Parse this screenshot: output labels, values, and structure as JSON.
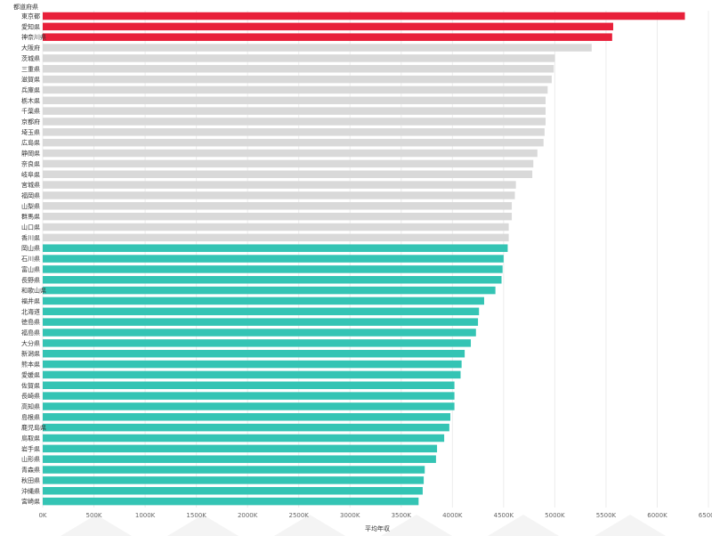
{
  "chart_data": {
    "type": "bar",
    "orientation": "horizontal",
    "title": "",
    "row_header": "都道府県",
    "xlabel": "平均年収",
    "xlim": [
      0,
      6500000
    ],
    "x_ticks": [
      0,
      500000,
      1000000,
      1500000,
      2000000,
      2500000,
      3000000,
      3500000,
      4000000,
      4500000,
      5000000,
      5500000,
      6000000,
      6500000
    ],
    "x_tick_labels": [
      "0K",
      "500K",
      "1000K",
      "1500K",
      "2000K",
      "2500K",
      "3000K",
      "3500K",
      "4000K",
      "4500K",
      "5000K",
      "5500K",
      "6000K",
      "6500K"
    ],
    "grid": "vertical",
    "colors": {
      "top": "#e8203a",
      "middle": "#d9d9d9",
      "bottom": "#34c4b4"
    },
    "categories": [
      "東京都",
      "愛知県",
      "神奈川県",
      "大阪府",
      "茨城県",
      "三重県",
      "滋賀県",
      "兵庫県",
      "栃木県",
      "千葉県",
      "京都府",
      "埼玉県",
      "広島県",
      "静岡県",
      "奈良県",
      "岐阜県",
      "宮城県",
      "福岡県",
      "山梨県",
      "群馬県",
      "山口県",
      "香川県",
      "岡山県",
      "石川県",
      "富山県",
      "長野県",
      "和歌山県",
      "福井県",
      "北海道",
      "徳島県",
      "福島県",
      "大分県",
      "新潟県",
      "熊本県",
      "愛媛県",
      "佐賀県",
      "長崎県",
      "高知県",
      "島根県",
      "鹿児島県",
      "鳥取県",
      "岩手県",
      "山形県",
      "青森県",
      "秋田県",
      "沖縄県",
      "宮崎県"
    ],
    "values": [
      6270000,
      5570000,
      5560000,
      5360000,
      5000000,
      4990000,
      4970000,
      4930000,
      4910000,
      4910000,
      4910000,
      4900000,
      4890000,
      4830000,
      4790000,
      4780000,
      4620000,
      4610000,
      4580000,
      4580000,
      4550000,
      4550000,
      4540000,
      4500000,
      4490000,
      4480000,
      4420000,
      4310000,
      4260000,
      4250000,
      4230000,
      4180000,
      4120000,
      4090000,
      4080000,
      4020000,
      4020000,
      4020000,
      3980000,
      3970000,
      3920000,
      3850000,
      3840000,
      3730000,
      3720000,
      3710000,
      3670000
    ],
    "groups": [
      "top",
      "top",
      "top",
      "middle",
      "middle",
      "middle",
      "middle",
      "middle",
      "middle",
      "middle",
      "middle",
      "middle",
      "middle",
      "middle",
      "middle",
      "middle",
      "middle",
      "middle",
      "middle",
      "middle",
      "middle",
      "middle",
      "bottom",
      "bottom",
      "bottom",
      "bottom",
      "bottom",
      "bottom",
      "bottom",
      "bottom",
      "bottom",
      "bottom",
      "bottom",
      "bottom",
      "bottom",
      "bottom",
      "bottom",
      "bottom",
      "bottom",
      "bottom",
      "bottom",
      "bottom",
      "bottom",
      "bottom",
      "bottom",
      "bottom",
      "bottom"
    ]
  }
}
